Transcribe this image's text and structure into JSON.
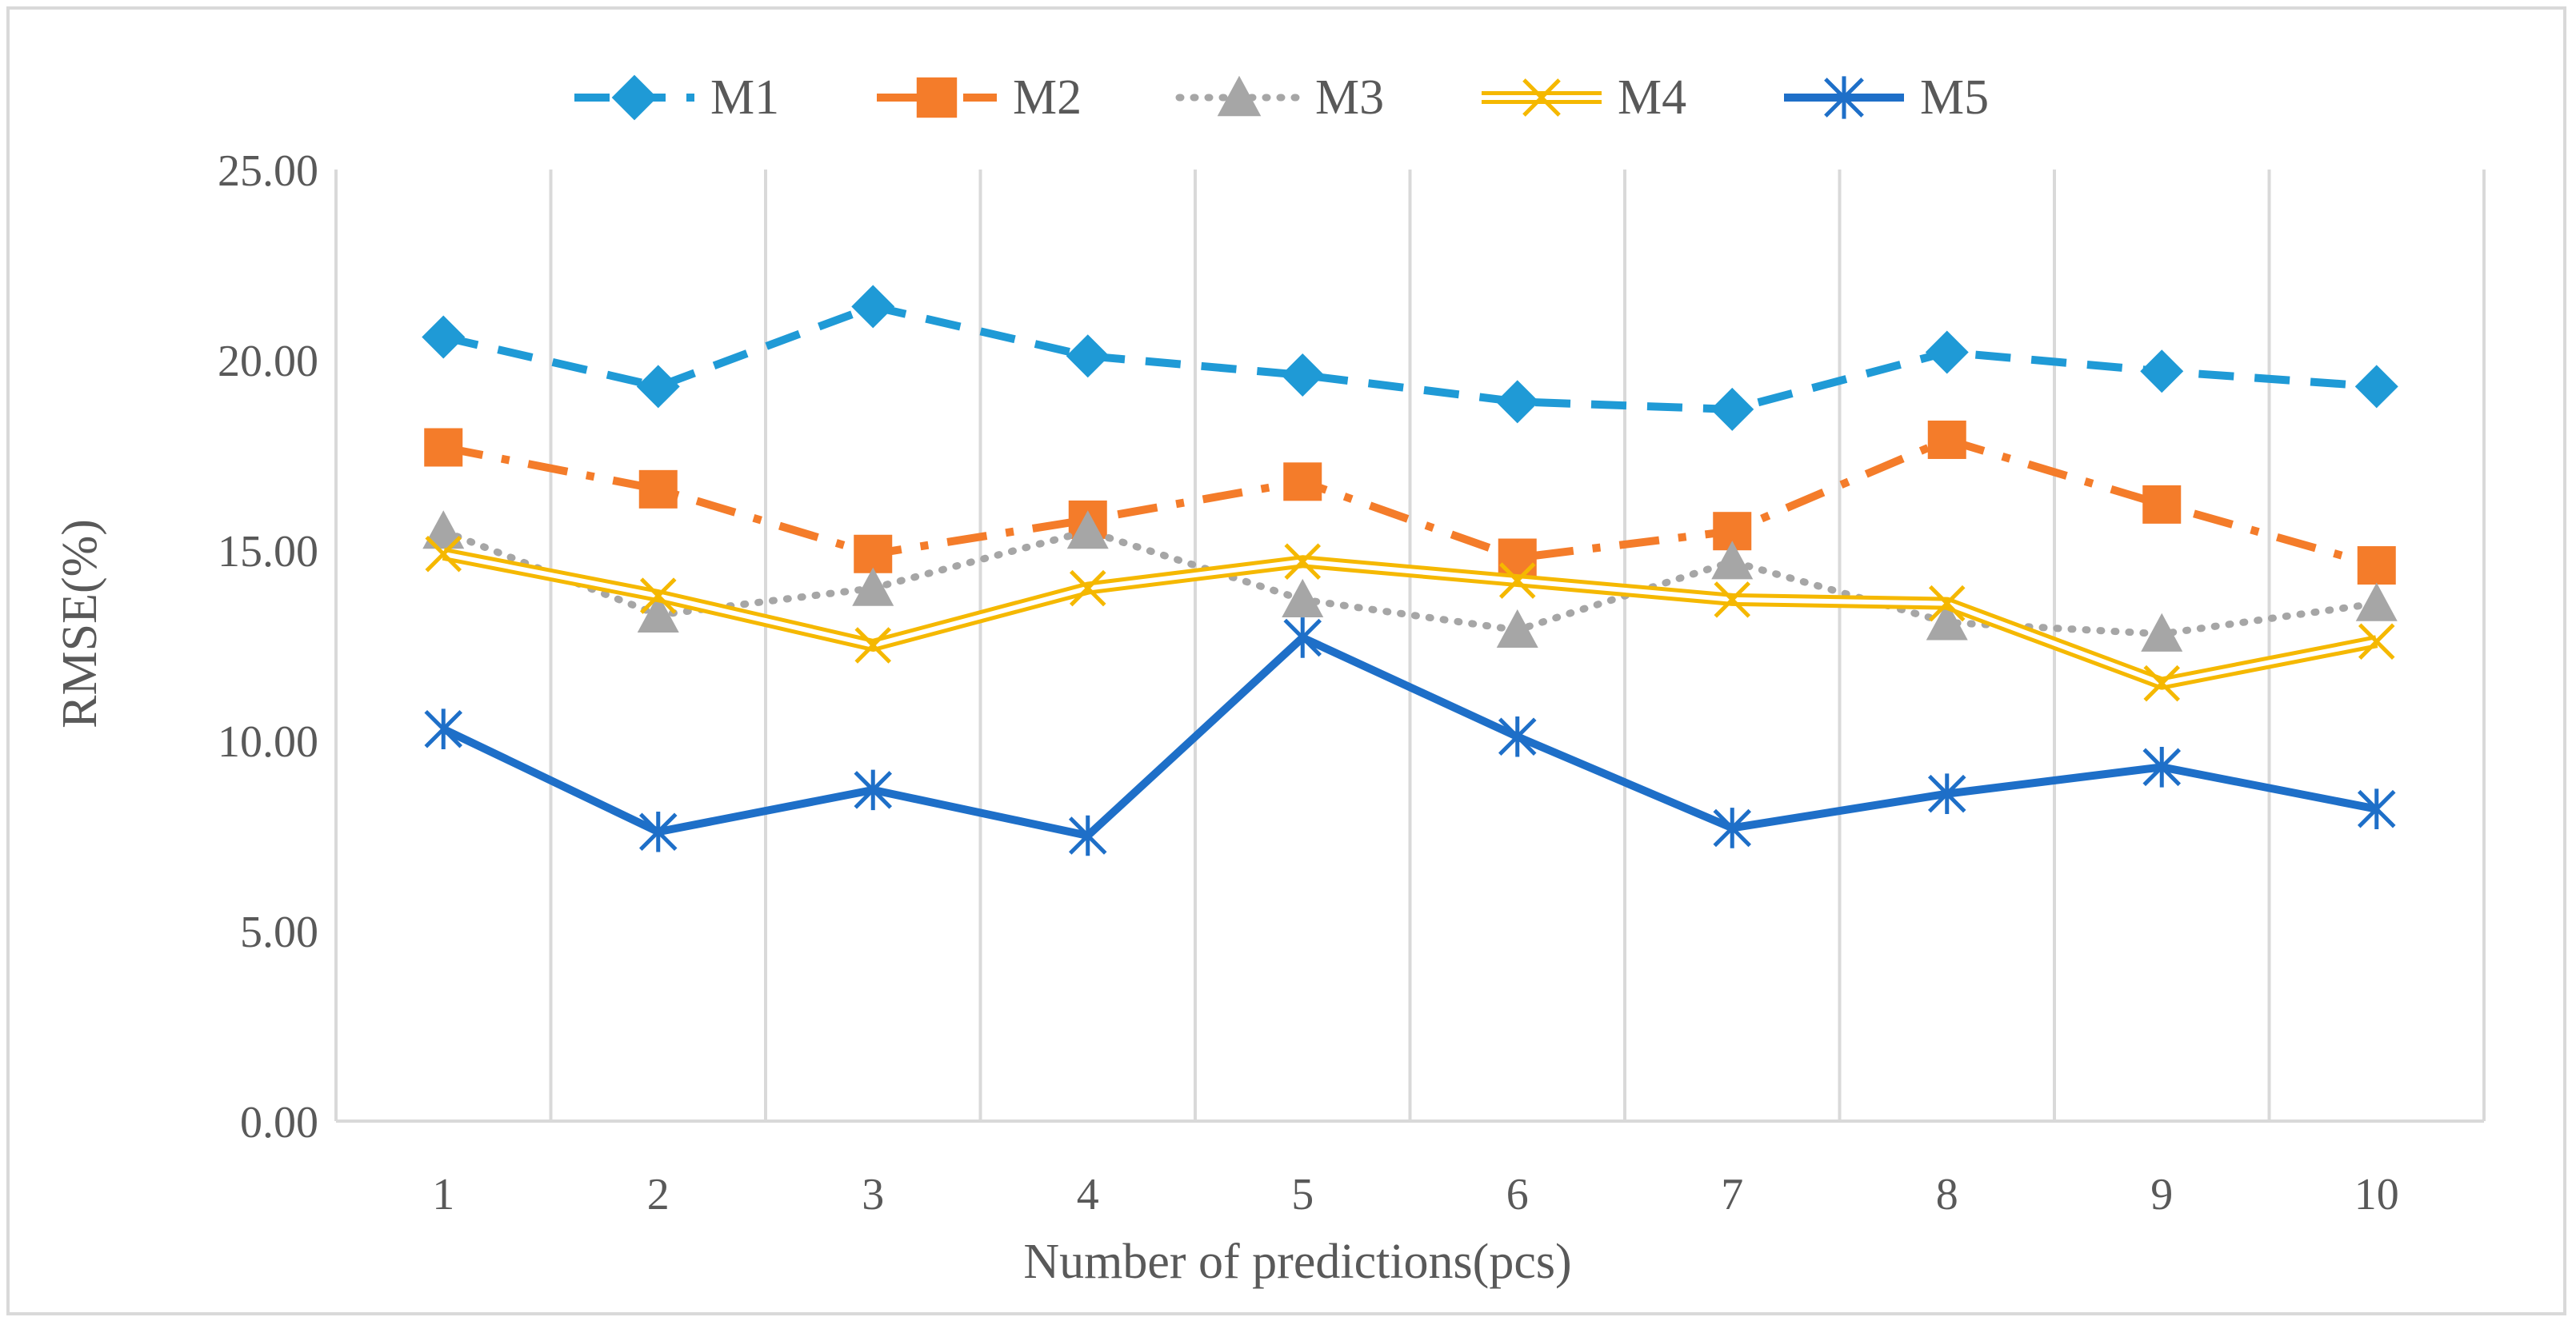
{
  "chart_data": {
    "type": "line",
    "title": "",
    "xlabel": "Number of predictions(pcs)",
    "ylabel": "RMSE(%)",
    "ylim": [
      0,
      25
    ],
    "y_ticks": [
      "0.00",
      "5.00",
      "10.00",
      "15.00",
      "20.00",
      "25.00"
    ],
    "categories": [
      "1",
      "2",
      "3",
      "4",
      "5",
      "6",
      "7",
      "8",
      "9",
      "10"
    ],
    "grid": "vertical",
    "legend_position": "top",
    "series": [
      {
        "name": "M1",
        "color": "#1f9ad6",
        "marker": "diamond",
        "dash": "dashed",
        "values": [
          20.6,
          19.3,
          21.4,
          20.1,
          19.6,
          18.9,
          18.7,
          20.2,
          19.7,
          19.3
        ]
      },
      {
        "name": "M2",
        "color": "#f47c2a",
        "marker": "square",
        "dash": "dash-dot",
        "values": [
          17.7,
          16.6,
          14.9,
          15.8,
          16.8,
          14.8,
          15.5,
          17.9,
          16.2,
          14.6
        ]
      },
      {
        "name": "M3",
        "color": "#a6a6a6",
        "marker": "triangle",
        "dash": "dotted",
        "values": [
          15.5,
          13.3,
          14.0,
          15.5,
          13.7,
          12.9,
          14.7,
          13.1,
          12.8,
          13.6
        ]
      },
      {
        "name": "M4",
        "color": "#f5b800",
        "marker": "x",
        "dash": "double",
        "values": [
          14.9,
          13.8,
          12.5,
          14.0,
          14.7,
          14.2,
          13.7,
          13.6,
          11.5,
          12.6
        ]
      },
      {
        "name": "M5",
        "color": "#1e6fc8",
        "marker": "asterisk",
        "dash": "solid",
        "values": [
          10.3,
          7.6,
          8.7,
          7.5,
          12.7,
          10.1,
          7.7,
          8.6,
          9.3,
          8.2
        ]
      }
    ]
  }
}
